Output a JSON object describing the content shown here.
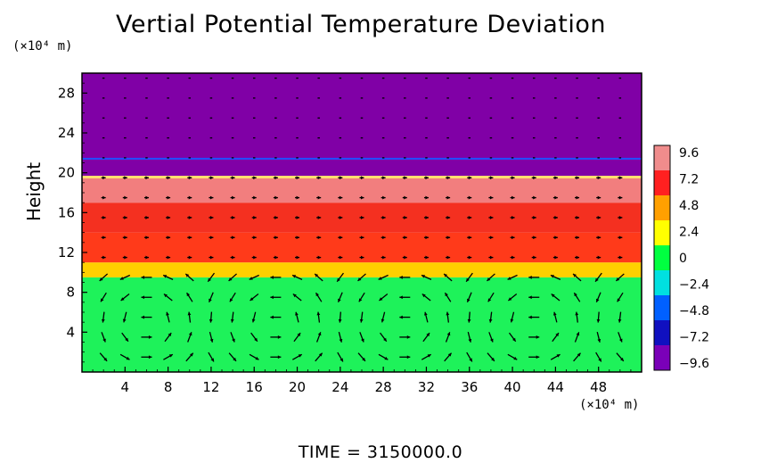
{
  "chart_data": {
    "type": "heatmap",
    "title": "Vertial Potential Temperature Deviation",
    "ylabel": "Height",
    "x_unit": "(×10⁴ m)",
    "y_unit": "(×10⁴ m)",
    "xlim": [
      0,
      52
    ],
    "ylim": [
      0,
      30
    ],
    "x_ticks": [
      "4",
      "8",
      "12",
      "16",
      "20",
      "24",
      "28",
      "32",
      "36",
      "40",
      "44",
      "48"
    ],
    "y_ticks": [
      "4",
      "8",
      "12",
      "16",
      "20",
      "24",
      "28"
    ],
    "colorbar": {
      "range": [
        -9.6,
        9.6
      ],
      "ticks": [
        "9.6",
        "7.2",
        "4.8",
        "2.4",
        "0",
        "−2.4",
        "−4.8",
        "−7.2",
        "−9.6"
      ],
      "colors": [
        "#f08c8c",
        "#ff2020",
        "#ffa000",
        "#ffff00",
        "#00ff40",
        "#00e0e0",
        "#0060ff",
        "#1010c0",
        "#7a00b8"
      ]
    },
    "layers": [
      {
        "y_from": 0,
        "y_to": 9.5,
        "value": 0.5,
        "color": "#1ef25a"
      },
      {
        "y_from": 9.5,
        "y_to": 11,
        "value": 4.5,
        "color": "#ffd000"
      },
      {
        "y_from": 11,
        "y_to": 14,
        "value": 7.2,
        "color": "#ff3a1a"
      },
      {
        "y_from": 14,
        "y_to": 17,
        "value": 8.0,
        "color": "#f43020"
      },
      {
        "y_from": 17,
        "y_to": 19.5,
        "value": 9.2,
        "color": "#f27e7e"
      },
      {
        "y_from": 19.5,
        "y_to": 30,
        "value": -9.6,
        "color": "#8000a6"
      }
    ],
    "grid": false,
    "legend": "colorbar-right"
  },
  "footer": {
    "time_label": "TIME  =  3150000.0"
  }
}
